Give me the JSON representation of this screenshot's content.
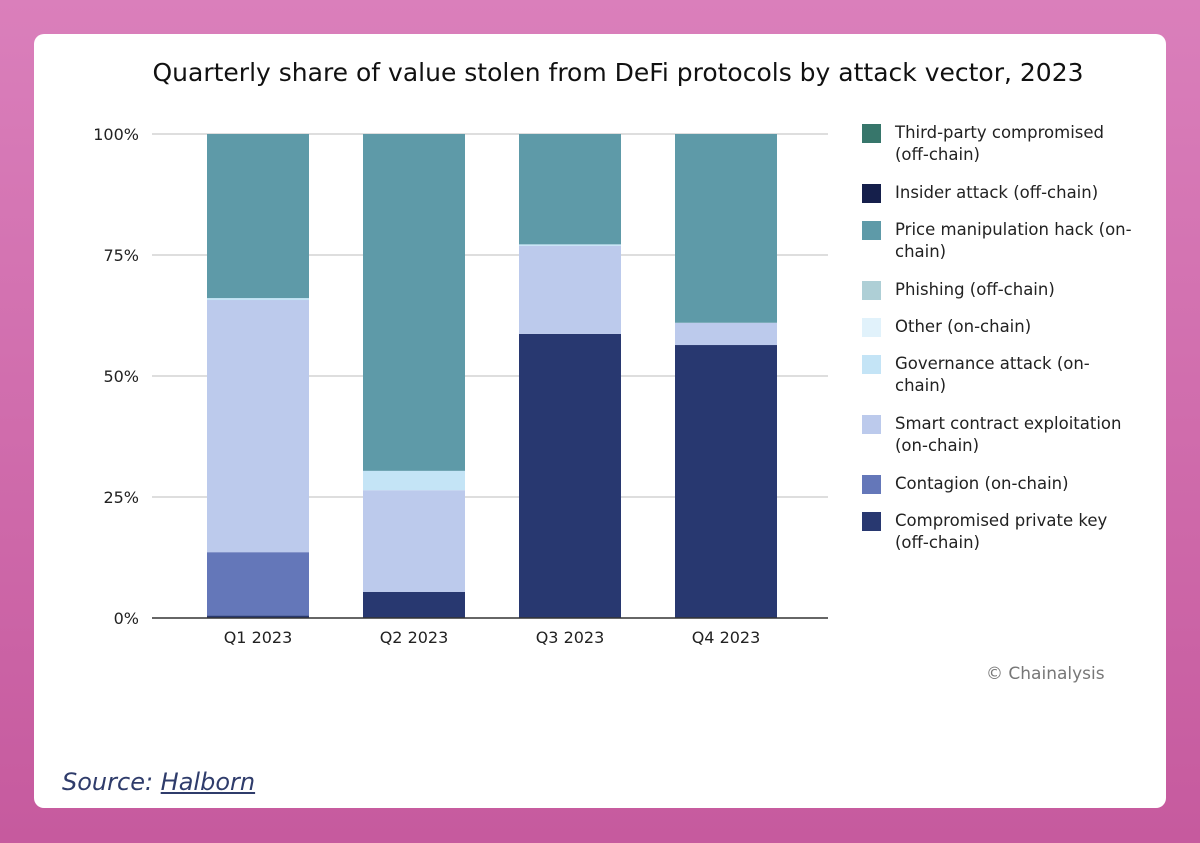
{
  "chart_data": {
    "type": "bar",
    "stacked": true,
    "title": "Quarterly share of value stolen from DeFi protocols by attack vector, 2023",
    "xlabel": "",
    "ylabel": "",
    "ylim": [
      0,
      100
    ],
    "yticks": [
      "0%",
      "25%",
      "50%",
      "75%",
      "100%"
    ],
    "categories": [
      "Q1 2023",
      "Q2 2023",
      "Q3 2023",
      "Q4 2023"
    ],
    "legend_position": "right",
    "series": [
      {
        "name": "Compromised private key (off-chain)",
        "color": "#283870",
        "values": [
          0.5,
          5.4,
          58.7,
          56.4
        ]
      },
      {
        "name": "Contagion (on-chain)",
        "color": "#6477b9",
        "values": [
          13.1,
          0,
          0,
          0
        ]
      },
      {
        "name": "Smart contract exploitation (on-chain)",
        "color": "#bccaec",
        "values": [
          52.1,
          21.0,
          18.2,
          4.6
        ]
      },
      {
        "name": "Governance attack (on-chain)",
        "color": "#c4e4f6",
        "values": [
          0.4,
          4.0,
          0.3,
          0
        ]
      },
      {
        "name": "Other (on-chain)",
        "color": "#e1f2fb",
        "values": [
          0,
          0,
          0,
          0
        ]
      },
      {
        "name": "Phishing (off-chain)",
        "color": "#aecfd6",
        "values": [
          0,
          0,
          0,
          0
        ]
      },
      {
        "name": "Price manipulation hack (on-chain)",
        "color": "#5e9aa8",
        "values": [
          33.9,
          69.6,
          22.8,
          39.0
        ]
      },
      {
        "name": "Insider attack (off-chain)",
        "color": "#151f4b",
        "values": [
          0,
          0,
          0,
          0
        ]
      },
      {
        "name": "Third-party compromised (off-chain)",
        "color": "#37766b",
        "values": [
          0,
          0,
          0,
          0
        ]
      }
    ]
  },
  "legend": [
    {
      "lines": [
        "Third-party compromised",
        "(off-chain)"
      ],
      "color": "#37766b"
    },
    {
      "lines": [
        "Insider attack (off-chain)"
      ],
      "color": "#151f4b"
    },
    {
      "lines": [
        "Price manipulation hack (on-",
        "chain)"
      ],
      "color": "#5e9aa8"
    },
    {
      "lines": [
        "Phishing (off-chain)"
      ],
      "color": "#aecfd6"
    },
    {
      "lines": [
        "Other (on-chain)"
      ],
      "color": "#e1f2fb"
    },
    {
      "lines": [
        "Governance attack (on-",
        "chain)"
      ],
      "color": "#c4e4f6"
    },
    {
      "lines": [
        "Smart contract exploitation",
        "(on-chain)"
      ],
      "color": "#bccaec"
    },
    {
      "lines": [
        "Contagion (on-chain)"
      ],
      "color": "#6477b9"
    },
    {
      "lines": [
        "Compromised private key",
        "(off-chain)"
      ],
      "color": "#283870"
    }
  ],
  "credit": "© Chainalysis",
  "source": {
    "prefix": "Source: ",
    "link": "Halborn"
  }
}
